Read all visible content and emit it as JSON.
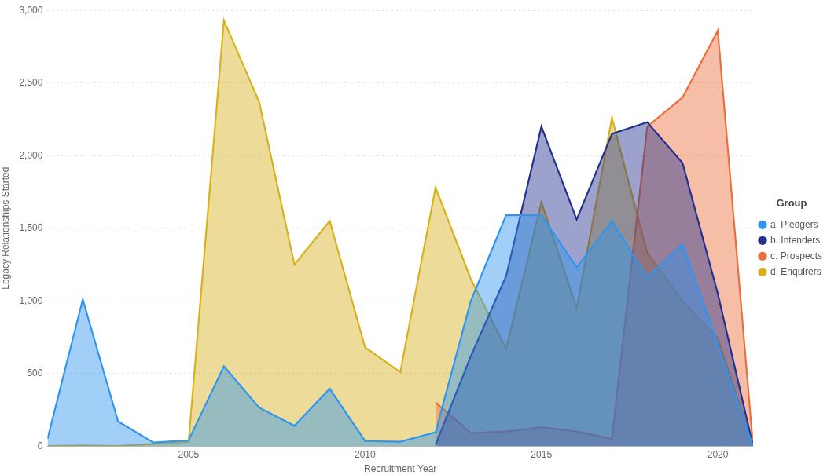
{
  "chart_data": {
    "type": "area",
    "x_label": "Recruitment Year",
    "y_label": "Legacy Relationships Started",
    "legend_title": "Group",
    "legend": "right",
    "grid": true,
    "x": [
      2001,
      2002,
      2003,
      2004,
      2005,
      2006,
      2007,
      2008,
      2009,
      2010,
      2011,
      2012,
      2013,
      2014,
      2015,
      2016,
      2017,
      2018,
      2019,
      2020,
      2021
    ],
    "xlim": [
      2001,
      2021
    ],
    "xticks": [
      2005,
      2010,
      2015,
      2020
    ],
    "ylim": [
      0,
      3000
    ],
    "yticks": [
      0,
      500,
      {
        "value": 1000,
        "label": "1,000"
      },
      {
        "value": 1500,
        "label": "1,500"
      },
      {
        "value": 2000,
        "label": "2,000"
      },
      {
        "value": 2500,
        "label": "2,500"
      },
      {
        "value": 3000,
        "label": "3,000"
      }
    ],
    "series": [
      {
        "name": "a. Pledgers",
        "color": "#2f95f0",
        "values": [
          50,
          1010,
          170,
          25,
          40,
          550,
          265,
          140,
          395,
          35,
          30,
          95,
          1000,
          1590,
          1590,
          1230,
          1550,
          1160,
          1390,
          700,
          0
        ]
      },
      {
        "name": "b. Intenders",
        "color": "#24308f",
        "values": [
          null,
          null,
          null,
          null,
          null,
          null,
          null,
          null,
          null,
          null,
          null,
          10,
          620,
          1170,
          2200,
          1560,
          2150,
          2230,
          1950,
          1050,
          0
        ]
      },
      {
        "name": "c. Prospects",
        "color": "#eb6f3c",
        "values": [
          null,
          null,
          null,
          null,
          null,
          null,
          null,
          null,
          null,
          null,
          null,
          300,
          90,
          100,
          130,
          100,
          50,
          2200,
          2400,
          2860,
          0
        ]
      },
      {
        "name": "d. Enquirers",
        "color": "#d8b11c",
        "values": [
          0,
          5,
          0,
          15,
          30,
          2930,
          2370,
          1250,
          1550,
          680,
          510,
          1780,
          1150,
          670,
          1680,
          950,
          2260,
          1330,
          1000,
          740,
          0
        ]
      }
    ]
  }
}
